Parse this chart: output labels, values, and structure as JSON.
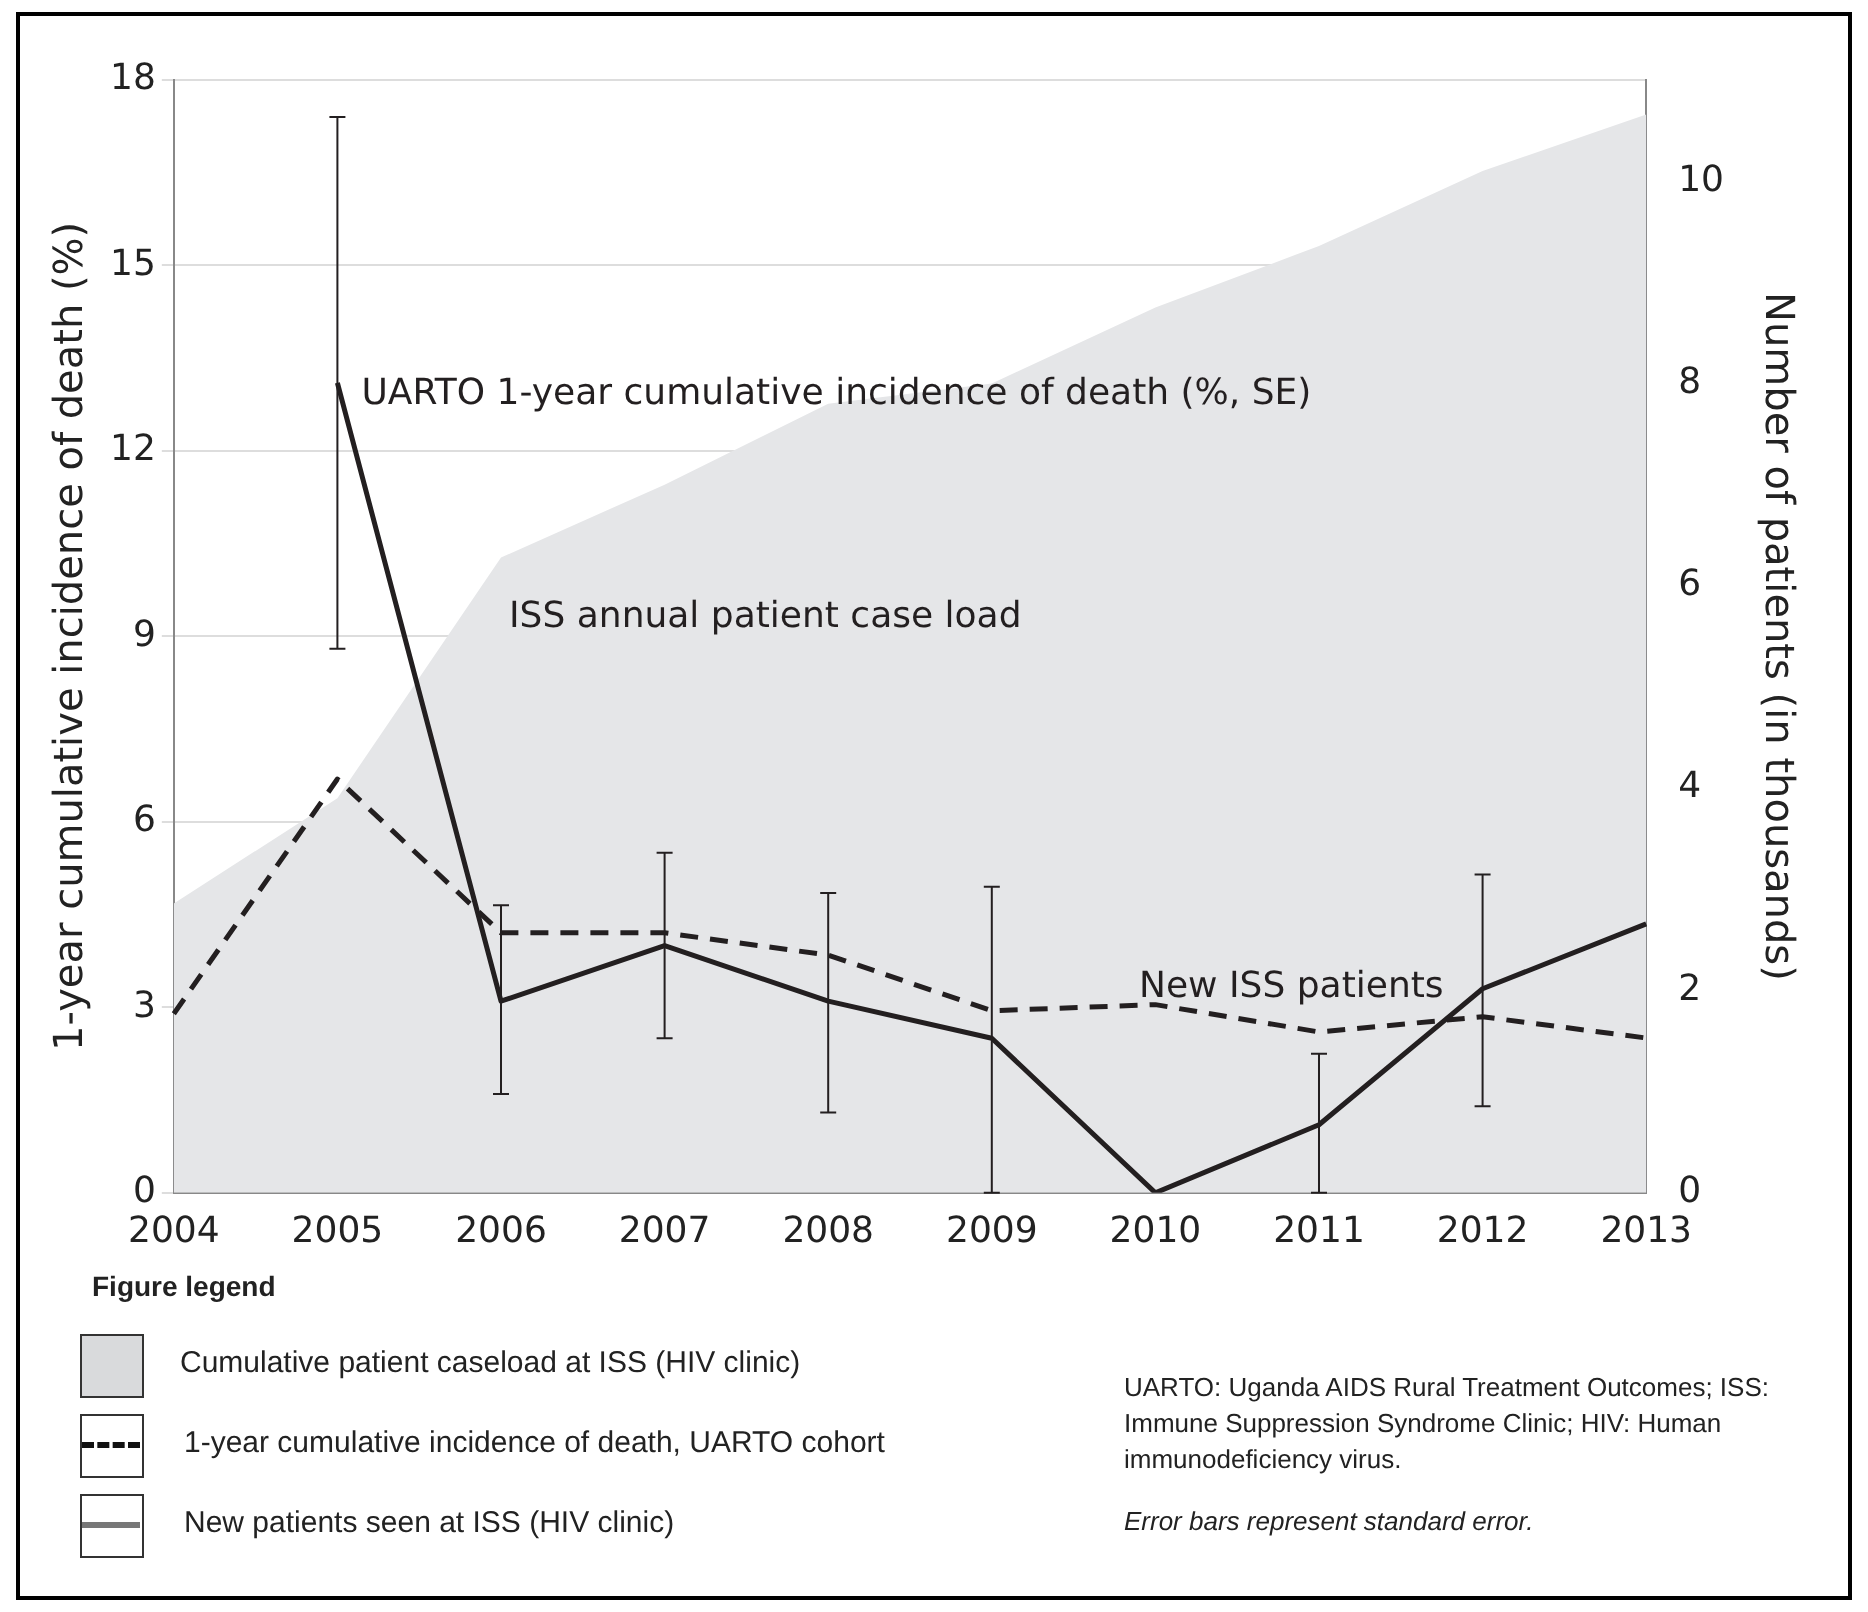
{
  "chart_data": {
    "type": "line",
    "categories": [
      "2004",
      "2005",
      "2006",
      "2007",
      "2008",
      "2009",
      "2010",
      "2011",
      "2012",
      "2013"
    ],
    "ylabel": "1-year cumulative incidence of death (%)",
    "y2label": "Number of patients (in thousands)",
    "ylim": [
      0,
      18
    ],
    "yticks": [
      0,
      3,
      6,
      9,
      12,
      15,
      18
    ],
    "y2lim": [
      0,
      11
    ],
    "y2ticks": [
      0,
      2,
      4,
      6,
      8,
      10
    ],
    "grid": "y",
    "legend": false,
    "marker": "none",
    "series": [
      {
        "type": "area",
        "name": "ISS annual patient case load",
        "color": "#e5e6e8",
        "axis": "y2",
        "values": [
          2.86,
          3.9,
          6.28,
          7.0,
          7.8,
          8.0,
          8.75,
          9.36,
          10.1,
          10.66
        ]
      },
      {
        "type": "line",
        "name": "UARTO 1-year cumulative incidence of death (%, SE)",
        "color": "#231f20",
        "line_style": "solid",
        "values": [
          null,
          13.1,
          3.1,
          4.0,
          3.1,
          2.5,
          0,
          1.1,
          3.3,
          4.35
        ],
        "errors": [
          null,
          [
            8.8,
            17.4
          ],
          [
            1.6,
            4.65
          ],
          [
            2.5,
            5.5
          ],
          [
            1.3,
            4.85
          ],
          [
            0,
            4.95
          ],
          null,
          [
            0,
            2.25
          ],
          [
            1.4,
            5.15
          ],
          null
        ]
      },
      {
        "type": "line",
        "name": "New ISS patients",
        "color": "#231f20",
        "line_style": "dashed",
        "axis": "y2",
        "values": [
          1.77,
          4.09,
          2.57,
          2.57,
          2.35,
          1.8,
          1.86,
          1.59,
          1.74,
          1.53
        ]
      }
    ],
    "annotations": [
      "Figure legend",
      "Cumulative patient caseload at ISS (HIV clinic)",
      "1-year cumulative incidence of death, UARTO cohort",
      "New patients seen at ISS (HIV clinic)",
      "UARTO: Uganda AIDS Rural Treatment Outcomes; ISS: Immune Suppression Syndrome Clinic; HIV: Human immunodeficiency virus.",
      "Error bars represent standard error."
    ]
  }
}
